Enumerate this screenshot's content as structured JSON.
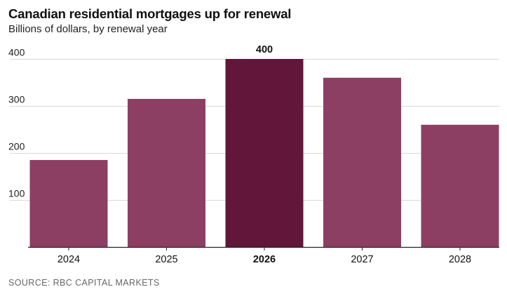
{
  "chart_data": {
    "type": "bar",
    "title": "Canadian residential mortgages up for renewal",
    "subtitle": "Billions of dollars, by renewal year",
    "categories": [
      "2024",
      "2025",
      "2026",
      "2027",
      "2028"
    ],
    "values": [
      185,
      315,
      400,
      360,
      260
    ],
    "highlight": {
      "category": "2026",
      "data_label": "400"
    },
    "ylim": [
      0,
      400
    ],
    "yticks": [
      100,
      200,
      300,
      400
    ],
    "grid": true,
    "legend": "none",
    "colors": {
      "bar": "#8c3f63",
      "highlight_bar": "#61163a",
      "grid": "#d9d9d9",
      "axis": "#222222"
    }
  },
  "source": "SOURCE: RBC CAPITAL MARKETS"
}
